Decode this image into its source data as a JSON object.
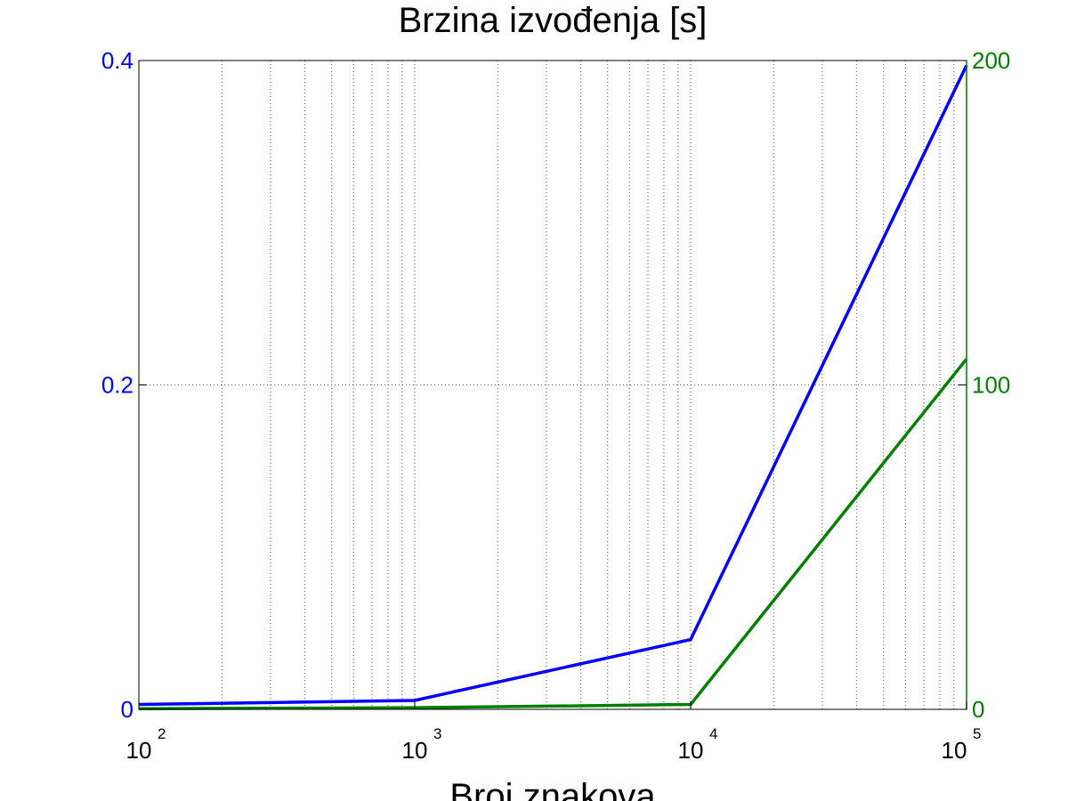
{
  "chart_data": {
    "type": "line",
    "title": "Brzina izvođenja [s]",
    "xlabel": "Broj znakova",
    "ylabel": "",
    "x_scale": "log",
    "grid": "on",
    "x": [
      100,
      1000,
      10000,
      100000
    ],
    "xlim": [
      100,
      100000
    ],
    "xticks": [
      {
        "value": 100,
        "base": "10",
        "exp": "2"
      },
      {
        "value": 1000,
        "base": "10",
        "exp": "3"
      },
      {
        "value": 10000,
        "base": "10",
        "exp": "4"
      },
      {
        "value": 100000,
        "base": "10",
        "exp": "5"
      }
    ],
    "left_axis": {
      "ylim": [
        0,
        0.4
      ],
      "ticks": [
        0,
        0.2,
        0.4
      ],
      "tick_labels": [
        "0",
        "0.2",
        "0.4"
      ],
      "color": "#0000ff"
    },
    "right_axis": {
      "ylim": [
        0,
        200
      ],
      "ticks": [
        0,
        100,
        200
      ],
      "tick_labels": [
        "0",
        "100",
        "200"
      ],
      "color": "#007f00"
    },
    "series": [
      {
        "axis": "left",
        "color": "#0000ff",
        "values": [
          0.003,
          0.0055,
          0.043,
          0.397
        ]
      },
      {
        "axis": "right",
        "color": "#007f00",
        "values": [
          0.2,
          0.5,
          1.5,
          108
        ]
      }
    ]
  }
}
